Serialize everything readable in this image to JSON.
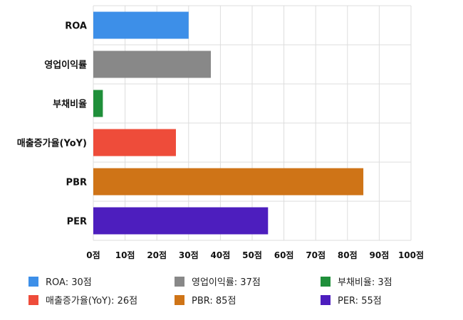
{
  "chart_data": {
    "type": "bar",
    "orientation": "horizontal",
    "categories": [
      "ROA",
      "영업이익률",
      "부채비율",
      "매출증가율(YoY)",
      "PBR",
      "PER"
    ],
    "values": [
      30,
      37,
      3,
      26,
      85,
      55
    ],
    "colors": [
      "#3d8fe8",
      "#888888",
      "#1f8f3a",
      "#ee4c3a",
      "#cf7417",
      "#4d1ebe"
    ],
    "xlim": [
      0,
      100
    ],
    "xticks": [
      "0점",
      "10점",
      "20점",
      "30점",
      "40점",
      "50점",
      "60점",
      "70점",
      "80점",
      "90점",
      "100점"
    ],
    "grid": true,
    "legend_position": "bottom",
    "legend": [
      {
        "label": "ROA: 30점",
        "color": "#3d8fe8"
      },
      {
        "label": "영업이익률: 37점",
        "color": "#888888"
      },
      {
        "label": "부채비율: 3점",
        "color": "#1f8f3a"
      },
      {
        "label": "매출증가율(YoY): 26점",
        "color": "#ee4c3a"
      },
      {
        "label": "PBR: 85점",
        "color": "#cf7417"
      },
      {
        "label": "PER: 55점",
        "color": "#4d1ebe"
      }
    ]
  }
}
